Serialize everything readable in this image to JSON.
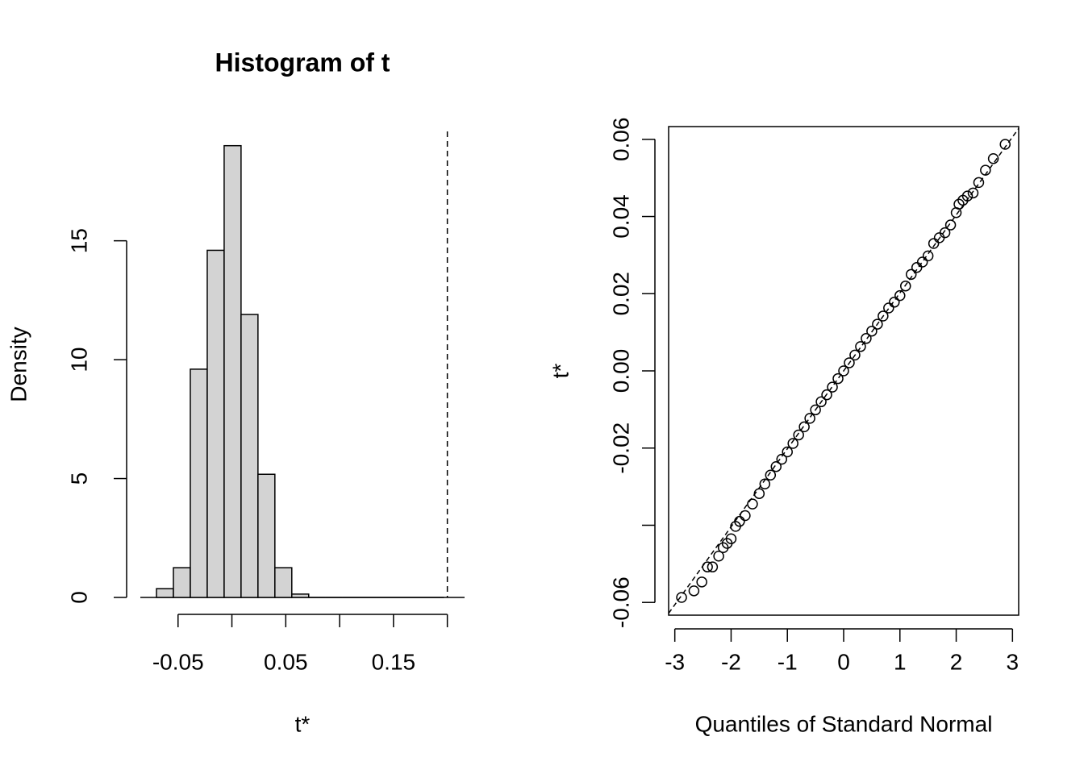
{
  "chart_data": [
    {
      "type": "histogram",
      "title": "Histogram of t",
      "x_label": "t*",
      "y_label": "Density",
      "bins": [
        -0.07,
        -0.0543,
        -0.0386,
        -0.0229,
        -0.0072,
        0.0085,
        0.0242,
        0.0399,
        0.0556,
        0.0713,
        0.087,
        0.1027,
        0.1184,
        0.1341,
        0.1498,
        0.1655,
        0.1812,
        0.1969
      ],
      "values": [
        0.37,
        1.25,
        9.6,
        14.6,
        19.0,
        11.9,
        5.18,
        1.25,
        0.14,
        0,
        0,
        0,
        0,
        0,
        0,
        0,
        0
      ],
      "color": "#d3d3d3",
      "reference_x": 0.2,
      "xlim": [
        -0.085,
        0.216
      ],
      "xticks": [
        -0.05,
        {
          "value": 0,
          "label": null
        },
        0.05,
        {
          "value": 0.1,
          "label": null
        },
        0.15,
        {
          "value": 0.2,
          "label": null
        }
      ],
      "ylim": [
        0,
        19.6
      ],
      "yticks": [
        0,
        5,
        10,
        15
      ]
    },
    {
      "type": "scatter",
      "x_label": "Quantiles of Standard Normal",
      "y_label": "t*",
      "x": [
        -2.88,
        -2.66,
        -2.52,
        -2.42,
        -2.33,
        -2.22,
        -2.14,
        -2.07,
        -2.0,
        -1.92,
        -1.85,
        -1.75,
        -1.62,
        -1.5,
        -1.4,
        -1.3,
        -1.2,
        -1.1,
        -1.0,
        -0.9,
        -0.8,
        -0.7,
        -0.6,
        -0.5,
        -0.4,
        -0.3,
        -0.2,
        -0.1,
        0,
        0.1,
        0.2,
        0.3,
        0.4,
        0.5,
        0.6,
        0.7,
        0.8,
        0.9,
        1.0,
        1.1,
        1.2,
        1.3,
        1.4,
        1.5,
        1.6,
        1.7,
        1.8,
        1.9,
        2.0,
        2.05,
        2.12,
        2.2,
        2.3,
        2.4,
        2.52,
        2.66,
        2.87
      ],
      "values": [
        -0.0587,
        -0.057,
        -0.0547,
        -0.0508,
        -0.0508,
        -0.048,
        -0.0458,
        -0.0447,
        -0.0435,
        -0.0403,
        -0.039,
        -0.0375,
        -0.0345,
        -0.0318,
        -0.0293,
        -0.027,
        -0.0248,
        -0.0229,
        -0.021,
        -0.0188,
        -0.0166,
        -0.0145,
        -0.0123,
        -0.0101,
        -0.008,
        -0.0062,
        -0.0042,
        -0.002,
        0.0,
        0.0021,
        0.0041,
        0.0063,
        0.0084,
        0.0103,
        0.0121,
        0.0142,
        0.0163,
        0.0178,
        0.0195,
        0.022,
        0.025,
        0.0268,
        0.0282,
        0.0298,
        0.033,
        0.0345,
        0.0358,
        0.0378,
        0.041,
        0.0432,
        0.0442,
        0.0453,
        0.0461,
        0.0488,
        0.052,
        0.055,
        0.0587
      ],
      "reference_line": {
        "intercept": 0,
        "slope": 0.0202
      },
      "xlim": [
        -3.11,
        3.11
      ],
      "xticks": [
        -3,
        -2,
        -1,
        0,
        1,
        2,
        3
      ],
      "ylim": [
        -0.0633,
        0.0633
      ],
      "yticks": [
        -0.06,
        {
          "value": -0.04,
          "label": null
        },
        -0.02,
        {
          "value": 0,
          "label": "0.00"
        },
        0.02,
        0.04,
        0.06
      ]
    }
  ]
}
